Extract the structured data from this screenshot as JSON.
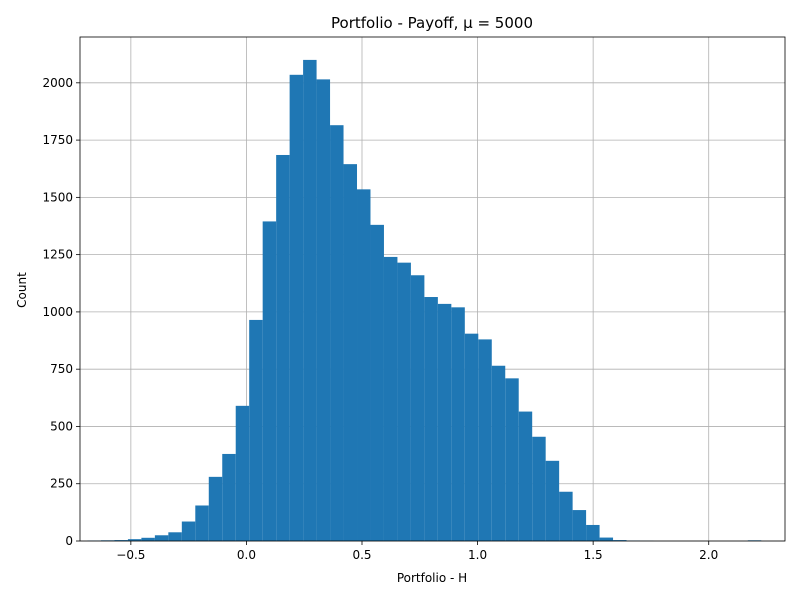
{
  "chart_data": {
    "type": "bar",
    "title": "Portfolio - Payoff, μ = 5000",
    "xlabel": "Portfolio - H",
    "ylabel": "Count",
    "xlim": [
      -0.72,
      2.33
    ],
    "ylim": [
      0,
      2200
    ],
    "grid": true,
    "bar_color": "#1f77b4",
    "x_ticks": [
      {
        "value": -0.5,
        "label": "−0.5"
      },
      {
        "value": 0.0,
        "label": "0.0"
      },
      {
        "value": 0.5,
        "label": "0.5"
      },
      {
        "value": 1.0,
        "label": "1.0"
      },
      {
        "value": 1.5,
        "label": "1.5"
      },
      {
        "value": 2.0,
        "label": "2.0"
      }
    ],
    "y_ticks": [
      {
        "value": 0,
        "label": "0"
      },
      {
        "value": 250,
        "label": "250"
      },
      {
        "value": 500,
        "label": "500"
      },
      {
        "value": 750,
        "label": "750"
      },
      {
        "value": 1000,
        "label": "1000"
      },
      {
        "value": 1250,
        "label": "1250"
      },
      {
        "value": 1500,
        "label": "1500"
      },
      {
        "value": 1750,
        "label": "1750"
      },
      {
        "value": 2000,
        "label": "2000"
      }
    ],
    "bin_edges": [
      -0.6876,
      -0.6293,
      -0.571,
      -0.5127,
      -0.4544,
      -0.3961,
      -0.3378,
      -0.2795,
      -0.2212,
      -0.1629,
      -0.1046,
      -0.0463,
      0.012,
      0.0703,
      0.1286,
      0.1869,
      0.2452,
      0.3035,
      0.3618,
      0.4201,
      0.4784,
      0.5367,
      0.595,
      0.6533,
      0.7116,
      0.7699,
      0.8282,
      0.8865,
      0.9448,
      1.0031,
      1.0614,
      1.1197,
      1.178,
      1.2363,
      1.2946,
      1.3529,
      1.4112,
      1.4695,
      1.5278,
      1.5861,
      1.6444,
      1.7027,
      1.761,
      1.8193,
      1.8776,
      1.9359,
      1.9942,
      2.0525,
      2.1108,
      2.1691,
      2.2274
    ],
    "counts": [
      2,
      3,
      4,
      8,
      14,
      25,
      38,
      85,
      155,
      280,
      380,
      590,
      965,
      1395,
      1685,
      2035,
      2100,
      2015,
      1815,
      1645,
      1535,
      1380,
      1240,
      1215,
      1160,
      1065,
      1035,
      1020,
      905,
      880,
      765,
      710,
      565,
      455,
      350,
      215,
      135,
      70,
      15,
      4,
      2,
      1,
      0,
      0,
      0,
      0,
      0,
      0,
      0,
      3
    ]
  }
}
